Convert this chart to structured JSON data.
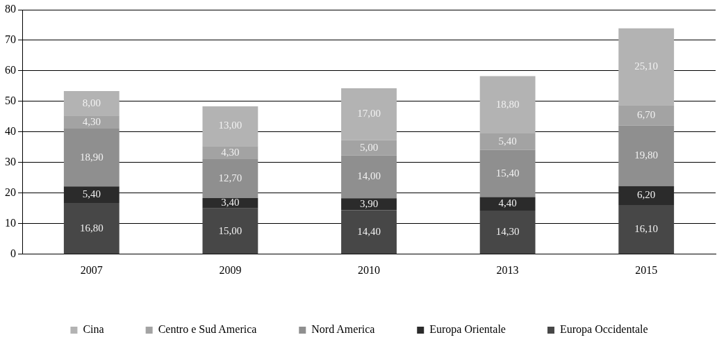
{
  "chart_data": {
    "type": "bar",
    "stacked": true,
    "categories": [
      "2007",
      "2009",
      "2010",
      "2013",
      "2015"
    ],
    "series": [
      {
        "name": "Europa Occidentale",
        "color": "#474747",
        "values": [
          16.8,
          15.0,
          14.4,
          14.3,
          16.1
        ],
        "value_labels": [
          "16,80",
          "15,00",
          "14,40",
          "14,30",
          "16,10"
        ]
      },
      {
        "name": "Europa Orientale",
        "color": "#2b2b2b",
        "values": [
          5.4,
          3.4,
          3.9,
          4.4,
          6.2
        ],
        "value_labels": [
          "5,40",
          "3,40",
          "3,90",
          "4,40",
          "6,20"
        ]
      },
      {
        "name": "Nord America",
        "color": "#8f8f8f",
        "values": [
          18.9,
          12.7,
          14.0,
          15.4,
          19.8
        ],
        "value_labels": [
          "18,90",
          "12,70",
          "14,00",
          "15,40",
          "19,80"
        ]
      },
      {
        "name": "Centro e Sud America",
        "color": "#a3a3a3",
        "values": [
          4.3,
          4.3,
          5.0,
          5.4,
          6.7
        ],
        "value_labels": [
          "4,30",
          "4,30",
          "5,00",
          "5,40",
          "6,70"
        ]
      },
      {
        "name": "Cina",
        "color": "#b3b3b3",
        "values": [
          8.0,
          13.0,
          17.0,
          18.8,
          25.1
        ],
        "value_labels": [
          "8,00",
          "13,00",
          "17,00",
          "18,80",
          "25,10"
        ]
      }
    ],
    "ylim": [
      0,
      80
    ],
    "yticks": [
      0,
      10,
      20,
      30,
      40,
      50,
      60,
      70,
      80
    ],
    "grid": "y",
    "legend": "bottom"
  }
}
